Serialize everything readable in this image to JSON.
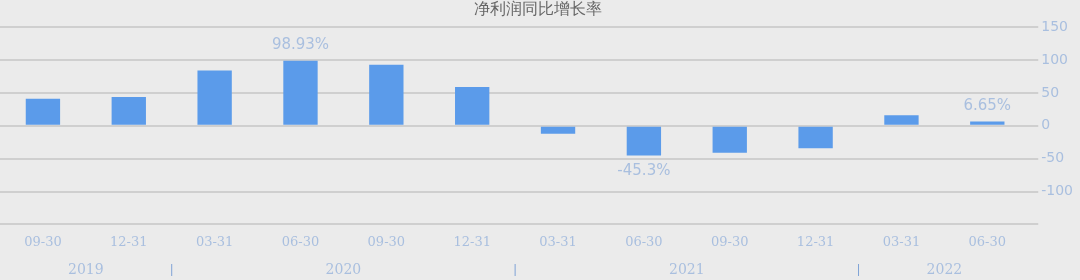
{
  "chart_data": {
    "type": "bar",
    "title": "净利润同比增长率",
    "categories": [
      "09-30",
      "12-31",
      "03-31",
      "06-30",
      "09-30",
      "12-31",
      "03-31",
      "06-30",
      "09-30",
      "12-31",
      "03-31",
      "06-30"
    ],
    "values": [
      41,
      44,
      84,
      98.93,
      93,
      59,
      -12,
      -45.3,
      -41,
      -34,
      16,
      6.65
    ],
    "value_labels": [
      null,
      null,
      null,
      "98.93%",
      null,
      null,
      null,
      "-45.3%",
      null,
      null,
      null,
      "6.65%"
    ],
    "color": "#5b9bea",
    "ylim": [
      -150,
      150
    ],
    "yticks": [
      {
        "value": -150,
        "label": null
      },
      -100,
      -50,
      0,
      50,
      100,
      150
    ],
    "grid": "y",
    "legend": false,
    "annotations": [
      "2019",
      "2020",
      "2021",
      "2022"
    ]
  }
}
